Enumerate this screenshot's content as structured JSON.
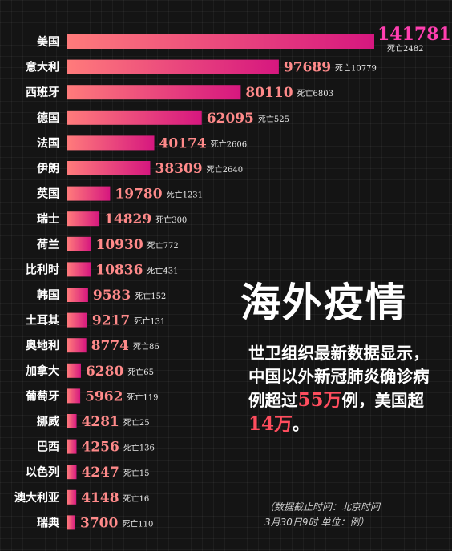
{
  "headline": "海外疫情",
  "description": {
    "part1": "世卫组织最新数据显示，中国以外新冠肺炎确诊病例超过",
    "highlight1": "55万",
    "part2": "例，美国超",
    "highlight2": "14万",
    "part3": "。"
  },
  "note": {
    "line1": "（数据截止时间：北京时间",
    "line2": "3月30日9时  单位：例）"
  },
  "colors": {
    "bar_start": "#ff7b7b",
    "bar_end": "#d6177f",
    "top_value": "#ff3fb0",
    "value": "#ff8a8a"
  },
  "chart_data": {
    "type": "bar",
    "orientation": "horizontal",
    "title": "",
    "xlabel": "",
    "ylabel": "",
    "death_prefix": "死亡",
    "categories": [
      "美国",
      "意大利",
      "西班牙",
      "德国",
      "法国",
      "伊朗",
      "英国",
      "瑞士",
      "荷兰",
      "比利时",
      "韩国",
      "土耳其",
      "奥地利",
      "加拿大",
      "葡萄牙",
      "挪威",
      "巴西",
      "以色列",
      "澳大利亚",
      "瑞典"
    ],
    "series": [
      {
        "values": [
          141781,
          97689,
          80110,
          62095,
          40174,
          38309,
          19780,
          14829,
          10930,
          10836,
          9583,
          9217,
          8774,
          6280,
          5962,
          4281,
          4256,
          4247,
          4148,
          3700
        ]
      }
    ],
    "deaths": [
      2482,
      10779,
      6803,
      525,
      2606,
      2640,
      1231,
      300,
      772,
      431,
      152,
      131,
      86,
      65,
      119,
      25,
      136,
      15,
      16,
      110
    ],
    "xlim": [
      0,
      141781
    ],
    "grid": false,
    "legend": "none"
  }
}
